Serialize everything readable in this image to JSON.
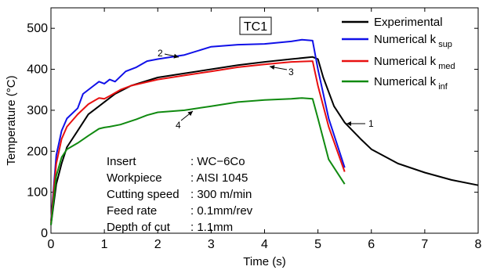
{
  "chart_data": {
    "type": "line",
    "title": "TC1",
    "xlabel": "Time (s)",
    "ylabel": "Temperature (°C)",
    "xlim": [
      0,
      8
    ],
    "ylim": [
      0,
      550
    ],
    "xticks": [
      0,
      1,
      2,
      3,
      4,
      5,
      6,
      7,
      8
    ],
    "yticks": [
      0,
      100,
      200,
      300,
      400,
      500
    ],
    "grid": false,
    "legend_position": "top-right",
    "series": [
      {
        "name": "Experimental",
        "legend_main": "Experimental",
        "legend_sub": "",
        "color": "#000000",
        "callout": "1",
        "x": [
          0,
          0.05,
          0.1,
          0.2,
          0.3,
          0.5,
          0.7,
          0.9,
          1.0,
          1.2,
          1.5,
          2.0,
          2.5,
          3.0,
          3.5,
          4.0,
          4.5,
          4.9,
          5.0,
          5.1,
          5.3,
          5.5,
          5.8,
          6.0,
          6.5,
          7.0,
          7.5,
          8.0
        ],
        "y": [
          20,
          70,
          120,
          170,
          210,
          250,
          290,
          310,
          320,
          340,
          360,
          380,
          390,
          400,
          410,
          418,
          425,
          430,
          425,
          380,
          310,
          270,
          230,
          205,
          170,
          148,
          130,
          117
        ]
      },
      {
        "name": "Numerical k_sup",
        "legend_main": "Numerical k",
        "legend_sub": "sup",
        "color": "#1010e8",
        "callout": "2",
        "x": [
          0,
          0.05,
          0.1,
          0.2,
          0.3,
          0.5,
          0.6,
          0.8,
          0.9,
          1.0,
          1.1,
          1.2,
          1.4,
          1.6,
          1.8,
          2.0,
          2.5,
          3.0,
          3.5,
          4.0,
          4.5,
          4.7,
          4.9,
          5.0,
          5.2,
          5.5
        ],
        "y": [
          30,
          110,
          190,
          250,
          280,
          305,
          340,
          360,
          370,
          365,
          375,
          370,
          395,
          405,
          420,
          425,
          435,
          455,
          460,
          462,
          468,
          472,
          470,
          400,
          280,
          160
        ]
      },
      {
        "name": "Numerical k_med",
        "legend_main": "Numerical k",
        "legend_sub": "med",
        "color": "#e81010",
        "callout": "3",
        "x": [
          0,
          0.05,
          0.1,
          0.2,
          0.3,
          0.5,
          0.7,
          0.9,
          1.0,
          1.1,
          1.3,
          1.5,
          2.0,
          2.5,
          3.0,
          3.5,
          4.0,
          4.5,
          4.9,
          5.0,
          5.2,
          5.5
        ],
        "y": [
          25,
          100,
          170,
          230,
          260,
          290,
          315,
          330,
          328,
          335,
          350,
          360,
          375,
          385,
          395,
          405,
          412,
          418,
          420,
          360,
          260,
          150
        ]
      },
      {
        "name": "Numerical k_inf",
        "legend_main": "Numerical k",
        "legend_sub": "inf",
        "color": "#108a10",
        "callout": "4",
        "x": [
          0,
          0.05,
          0.1,
          0.2,
          0.3,
          0.5,
          0.7,
          0.9,
          1.0,
          1.1,
          1.3,
          1.6,
          1.8,
          2.0,
          2.5,
          3.0,
          3.5,
          4.0,
          4.5,
          4.7,
          4.9,
          5.0,
          5.2,
          5.5
        ],
        "y": [
          20,
          80,
          140,
          185,
          205,
          220,
          238,
          255,
          258,
          260,
          265,
          278,
          288,
          295,
          300,
          310,
          320,
          325,
          328,
          330,
          328,
          280,
          180,
          120
        ]
      }
    ],
    "info_box": [
      {
        "label": "Insert",
        "value": ": WC−6Co"
      },
      {
        "label": "Workpiece",
        "value": ": AISI 1045"
      },
      {
        "label": "Cutting speed",
        "value": ": 300 m/min"
      },
      {
        "label": "Feed rate",
        "value": ": 0.1mm/rev"
      },
      {
        "label": "Depth of cut",
        "value": ": 1.1mm"
      }
    ]
  }
}
